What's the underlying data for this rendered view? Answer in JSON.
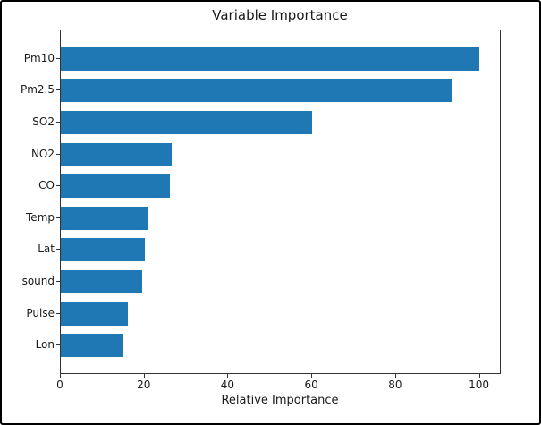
{
  "chart_data": {
    "type": "bar",
    "orientation": "horizontal",
    "title": "Variable Importance",
    "xlabel": "Relative Importance",
    "ylabel": "",
    "categories": [
      "Pm10",
      "Pm2.5",
      "SO2",
      "NO2",
      "CO",
      "Temp",
      "Lat",
      "sound",
      "Pulse",
      "Lon"
    ],
    "values": [
      100,
      93.5,
      60,
      26.5,
      26,
      21,
      20,
      19.5,
      16,
      15
    ],
    "xlim": [
      0,
      105
    ],
    "xticks": [
      0,
      20,
      40,
      60,
      80,
      100
    ],
    "grid": false,
    "legend": null,
    "bar_color": "#1f77b4"
  },
  "colors": {
    "bar": "#1f77b4",
    "spine": "#333333",
    "text": "#1a1a1a",
    "background": "#ffffff",
    "frame": "#000000"
  }
}
